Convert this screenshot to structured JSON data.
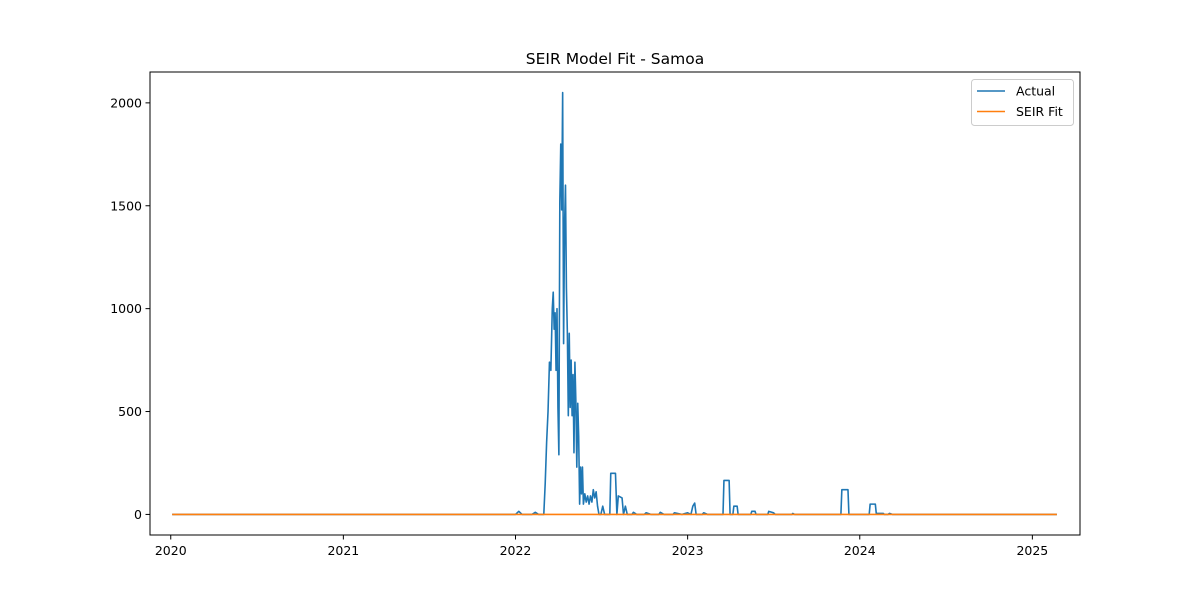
{
  "chart_data": {
    "type": "line",
    "title": "SEIR Model Fit - Samoa",
    "xlabel": "",
    "ylabel": "",
    "x_axis": {
      "kind": "date",
      "range": [
        "2019-11-18",
        "2025-04-12"
      ],
      "ticks": [
        "2020",
        "2021",
        "2022",
        "2023",
        "2024",
        "2025"
      ]
    },
    "y_axis": {
      "range": [
        -100,
        2150
      ],
      "ticks": [
        0,
        500,
        1000,
        1500,
        2000
      ]
    },
    "grid": false,
    "legend": {
      "placement": "top-right",
      "entries": [
        "Actual",
        "SEIR Fit"
      ]
    },
    "series": [
      {
        "name": "Actual",
        "color": "#1f77b4",
        "points": [
          [
            "2020-01-04",
            0
          ],
          [
            "2022-01-01",
            0
          ],
          [
            "2022-01-08",
            15
          ],
          [
            "2022-01-15",
            0
          ],
          [
            "2022-02-05",
            0
          ],
          [
            "2022-02-12",
            10
          ],
          [
            "2022-02-19",
            0
          ],
          [
            "2022-03-02",
            0
          ],
          [
            "2022-03-05",
            150
          ],
          [
            "2022-03-08",
            350
          ],
          [
            "2022-03-11",
            500
          ],
          [
            "2022-03-14",
            740
          ],
          [
            "2022-03-17",
            700
          ],
          [
            "2022-03-20",
            1000
          ],
          [
            "2022-03-22",
            1080
          ],
          [
            "2022-03-24",
            900
          ],
          [
            "2022-03-26",
            980
          ],
          [
            "2022-03-28",
            700
          ],
          [
            "2022-03-30",
            1000
          ],
          [
            "2022-04-01",
            520
          ],
          [
            "2022-04-03",
            290
          ],
          [
            "2022-04-05",
            1520
          ],
          [
            "2022-04-07",
            1800
          ],
          [
            "2022-04-09",
            1480
          ],
          [
            "2022-04-11",
            2050
          ],
          [
            "2022-04-13",
            830
          ],
          [
            "2022-04-15",
            1400
          ],
          [
            "2022-04-17",
            1600
          ],
          [
            "2022-04-19",
            1100
          ],
          [
            "2022-04-21",
            880
          ],
          [
            "2022-04-23",
            480
          ],
          [
            "2022-04-25",
            880
          ],
          [
            "2022-04-27",
            520
          ],
          [
            "2022-04-29",
            750
          ],
          [
            "2022-05-01",
            480
          ],
          [
            "2022-05-03",
            680
          ],
          [
            "2022-05-05",
            300
          ],
          [
            "2022-05-07",
            740
          ],
          [
            "2022-05-09",
            550
          ],
          [
            "2022-05-11",
            230
          ],
          [
            "2022-05-13",
            540
          ],
          [
            "2022-05-15",
            380
          ],
          [
            "2022-05-17",
            50
          ],
          [
            "2022-05-19",
            230
          ],
          [
            "2022-05-21",
            100
          ],
          [
            "2022-05-23",
            230
          ],
          [
            "2022-05-25",
            50
          ],
          [
            "2022-05-28",
            100
          ],
          [
            "2022-05-31",
            60
          ],
          [
            "2022-06-03",
            90
          ],
          [
            "2022-06-06",
            50
          ],
          [
            "2022-06-09",
            90
          ],
          [
            "2022-06-12",
            60
          ],
          [
            "2022-06-15",
            120
          ],
          [
            "2022-06-18",
            80
          ],
          [
            "2022-06-21",
            110
          ],
          [
            "2022-06-24",
            40
          ],
          [
            "2022-06-27",
            0
          ],
          [
            "2022-07-01",
            0
          ],
          [
            "2022-07-05",
            40
          ],
          [
            "2022-07-09",
            0
          ],
          [
            "2022-07-20",
            0
          ],
          [
            "2022-07-22",
            200
          ],
          [
            "2022-08-01",
            200
          ],
          [
            "2022-08-04",
            0
          ],
          [
            "2022-08-07",
            90
          ],
          [
            "2022-08-15",
            80
          ],
          [
            "2022-08-18",
            0
          ],
          [
            "2022-08-22",
            40
          ],
          [
            "2022-08-26",
            0
          ],
          [
            "2022-09-05",
            0
          ],
          [
            "2022-09-08",
            10
          ],
          [
            "2022-09-15",
            0
          ],
          [
            "2022-10-01",
            0
          ],
          [
            "2022-10-05",
            8
          ],
          [
            "2022-10-15",
            0
          ],
          [
            "2022-11-01",
            0
          ],
          [
            "2022-11-04",
            10
          ],
          [
            "2022-11-12",
            0
          ],
          [
            "2022-12-01",
            0
          ],
          [
            "2022-12-04",
            8
          ],
          [
            "2022-12-20",
            0
          ],
          [
            "2023-01-01",
            8
          ],
          [
            "2023-01-08",
            0
          ],
          [
            "2023-01-12",
            40
          ],
          [
            "2023-01-16",
            55
          ],
          [
            "2023-01-19",
            0
          ],
          [
            "2023-02-01",
            0
          ],
          [
            "2023-02-04",
            8
          ],
          [
            "2023-02-12",
            0
          ],
          [
            "2023-03-01",
            0
          ],
          [
            "2023-03-17",
            0
          ],
          [
            "2023-03-19",
            165
          ],
          [
            "2023-03-30",
            165
          ],
          [
            "2023-04-01",
            0
          ],
          [
            "2023-04-07",
            0
          ],
          [
            "2023-04-09",
            40
          ],
          [
            "2023-04-16",
            40
          ],
          [
            "2023-04-18",
            0
          ],
          [
            "2023-05-15",
            0
          ],
          [
            "2023-05-17",
            15
          ],
          [
            "2023-05-24",
            15
          ],
          [
            "2023-05-26",
            0
          ],
          [
            "2023-06-20",
            0
          ],
          [
            "2023-06-22",
            15
          ],
          [
            "2023-07-02",
            8
          ],
          [
            "2023-07-06",
            0
          ],
          [
            "2023-08-10",
            0
          ],
          [
            "2023-08-12",
            5
          ],
          [
            "2023-08-16",
            0
          ],
          [
            "2023-11-22",
            0
          ],
          [
            "2023-11-24",
            120
          ],
          [
            "2023-12-07",
            120
          ],
          [
            "2023-12-09",
            0
          ],
          [
            "2024-01-21",
            0
          ],
          [
            "2024-01-23",
            50
          ],
          [
            "2024-02-03",
            50
          ],
          [
            "2024-02-05",
            5
          ],
          [
            "2024-02-20",
            5
          ],
          [
            "2024-02-22",
            0
          ],
          [
            "2024-03-01",
            0
          ],
          [
            "2024-03-04",
            5
          ],
          [
            "2024-03-10",
            0
          ],
          [
            "2025-02-22",
            0
          ]
        ]
      },
      {
        "name": "SEIR Fit",
        "color": "#ff7f0e",
        "points": [
          [
            "2020-01-04",
            0
          ],
          [
            "2025-02-22",
            0
          ]
        ]
      }
    ]
  }
}
